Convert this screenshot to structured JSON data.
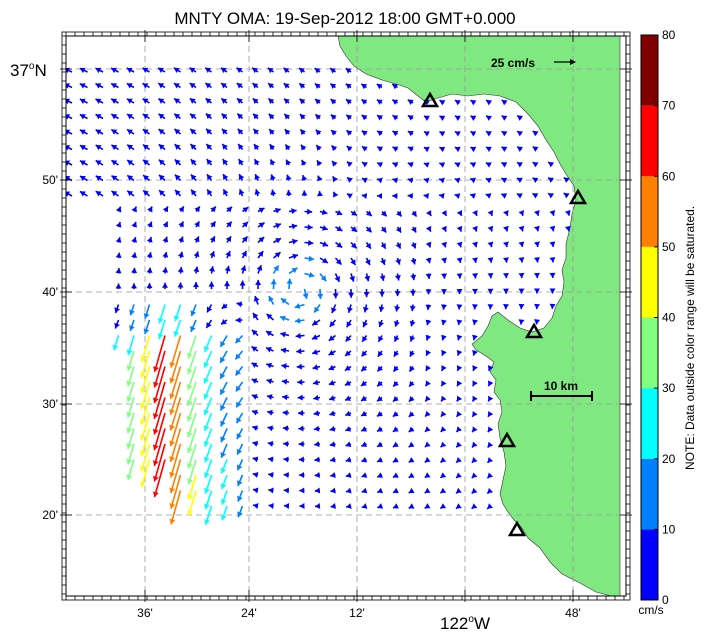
{
  "title": "MNTY OMA: 19-Sep-2012 18:00 GMT+0.000",
  "latitude_labels": [
    "37°N",
    "50'",
    "40'",
    "30'",
    "20'"
  ],
  "longitude_labels": [
    "36'",
    "24'",
    "12'",
    "122°W",
    "48'"
  ],
  "latitude_label_major": {
    "deg": "37",
    "sup": "o",
    "hemi": "N"
  },
  "longitude_label_major": {
    "deg": "122",
    "sup": "o",
    "hemi": "W"
  },
  "scale_vector_label": "25 cm/s",
  "scale_bar_label": "10 km",
  "colorbar": {
    "unit": "cm/s",
    "ticks": [
      "0",
      "10",
      "20",
      "30",
      "40",
      "50",
      "60",
      "70",
      "80"
    ],
    "colors": [
      "#0000ff",
      "#0080ff",
      "#00ffff",
      "#80ff80",
      "#ffff00",
      "#ff8000",
      "#ff0000",
      "#800000"
    ],
    "note": "NOTE: Data outside color range will be saturated."
  },
  "colors": {
    "land": "#80e880",
    "grid": "#999999",
    "frame": "#000000"
  },
  "stations": [
    "station-1",
    "station-2",
    "station-3",
    "station-4",
    "station-5"
  ]
}
